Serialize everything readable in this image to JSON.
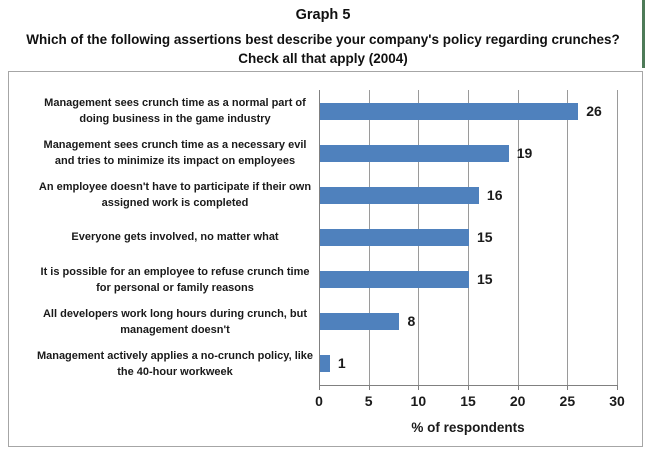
{
  "header": {
    "graph_label": "Graph 5",
    "question_line1": "Which of the following assertions best describe your company's policy regarding crunches?",
    "question_line2": "Check all that apply (2004)"
  },
  "chart_data": {
    "type": "bar",
    "orientation": "horizontal",
    "title": "Which of the following assertions best describe your company's policy regarding crunches? Check all that apply (2004)",
    "categories": [
      "Management sees crunch time as a normal part of doing business in the game industry",
      "Management sees crunch time as a necessary evil and tries to minimize its impact on employees",
      "An employee doesn't have to participate if their own assigned work is completed",
      "Everyone gets involved, no matter what",
      "It is possible for an employee to refuse crunch time for personal or family reasons",
      "All developers work long hours during crunch, but management doesn't",
      "Management actively applies a no-crunch policy, like the 40-hour workweek"
    ],
    "category_lines": [
      [
        "Management sees crunch time as a normal part of",
        "doing business in the game industry"
      ],
      [
        "Management sees crunch time as a necessary evil",
        "and tries to minimize its impact on employees"
      ],
      [
        "An employee doesn't have to participate if their own",
        "assigned work is completed"
      ],
      [
        "Everyone gets involved, no matter what"
      ],
      [
        "It is possible for an employee to refuse crunch time",
        "for personal or family reasons"
      ],
      [
        "All developers work long hours during crunch, but",
        "management doesn't"
      ],
      [
        "Management actively applies a no-crunch policy, like",
        "the 40-hour workweek"
      ]
    ],
    "values": [
      26,
      19,
      16,
      15,
      15,
      8,
      1
    ],
    "data_labels": [
      26,
      19,
      16,
      15,
      15,
      8,
      1
    ],
    "xlabel": "% of respondents",
    "ylabel": "",
    "xlim": [
      0,
      30
    ],
    "xticks": [
      0,
      5,
      10,
      15,
      20,
      25,
      30
    ],
    "grid": true,
    "legend": false,
    "bar_color": "#4f81bd",
    "gridline_color": "#9a9a9a"
  },
  "colors": {
    "green_cell_border": "#4e7b58",
    "frame_border": "#a6a6a6"
  }
}
